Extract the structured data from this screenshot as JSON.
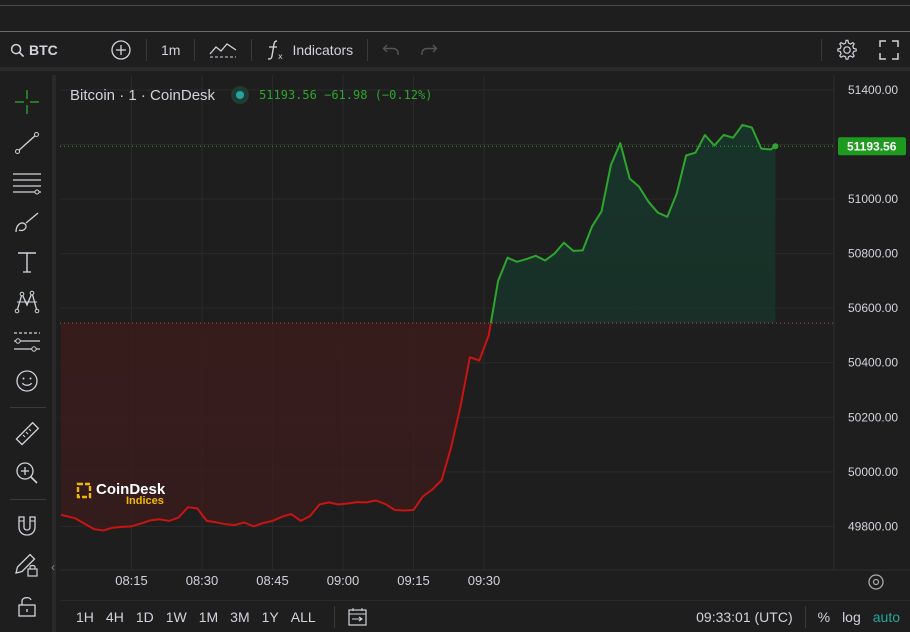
{
  "toolbar": {
    "symbol": "BTC",
    "interval": "1m",
    "indicators_label": "Indicators"
  },
  "legend": {
    "title": "Bitcoin · 1 · CoinDesk",
    "last": "51193.56",
    "change": "−61.98",
    "change_pct": "(−0.12%)"
  },
  "watermark": {
    "name": "CoinDesk",
    "sub": "Indices"
  },
  "price_axis": {
    "labels": [
      "51400.00",
      "51200.00",
      "51000.00",
      "50800.00",
      "50600.00",
      "50400.00",
      "50200.00",
      "50000.00",
      "49800.00"
    ],
    "last_price_label": "51193.56"
  },
  "time_axis": {
    "labels": [
      "08:15",
      "08:30",
      "08:45",
      "09:00",
      "09:15",
      "09:30"
    ]
  },
  "bottom": {
    "ranges": [
      "1H",
      "4H",
      "1D",
      "1W",
      "1M",
      "3M",
      "1Y",
      "ALL"
    ],
    "clock": "09:33:01 (UTC)",
    "percent": "%",
    "log": "log",
    "auto": "auto"
  },
  "colors": {
    "up": "#2ea52e",
    "down": "#c81414",
    "up_fill": "#163229",
    "down_fill": "#3d1b1b",
    "label_bg": "#1e9a1e"
  },
  "chart_data": {
    "type": "area",
    "baseline": 50545,
    "ylim": [
      49640,
      51455
    ],
    "x_minutes_from_0800": [
      0,
      3,
      5,
      7,
      9,
      11,
      13,
      15,
      17,
      19,
      21,
      23,
      25,
      27,
      29,
      31,
      33,
      35,
      37,
      39,
      41,
      43,
      45,
      47,
      49,
      51,
      53,
      55,
      57,
      59,
      61,
      63,
      65,
      67,
      69,
      71,
      73,
      75,
      77,
      79,
      81,
      83,
      85,
      87,
      89,
      91,
      93,
      95,
      97,
      99,
      101,
      103,
      105,
      107,
      109,
      111,
      113,
      115,
      117,
      119,
      121,
      123,
      125,
      127,
      129,
      131,
      133,
      135,
      137,
      139,
      141,
      143,
      145,
      147,
      149,
      151,
      152
    ],
    "x_tick_minutes": [
      15,
      30,
      45,
      60,
      75,
      90
    ],
    "y": [
      49842,
      49830,
      49810,
      49790,
      49785,
      49795,
      49798,
      49800,
      49810,
      49822,
      49826,
      49820,
      49832,
      49870,
      49866,
      49820,
      49815,
      49808,
      49805,
      49814,
      49800,
      49812,
      49820,
      49835,
      49845,
      49820,
      49838,
      49880,
      49888,
      49880,
      49884,
      49889,
      49888,
      49895,
      49882,
      49860,
      49858,
      49860,
      49910,
      49935,
      49970,
      50090,
      50240,
      50420,
      50408,
      50500,
      50700,
      50785,
      50770,
      50780,
      50792,
      50775,
      50800,
      50840,
      50810,
      50812,
      50900,
      50955,
      51125,
      51205,
      51075,
      51045,
      50990,
      50950,
      50935,
      51020,
      51160,
      51170,
      51235,
      51196,
      51235,
      51225,
      51272,
      51262,
      51185,
      51182,
      51193.56
    ]
  }
}
